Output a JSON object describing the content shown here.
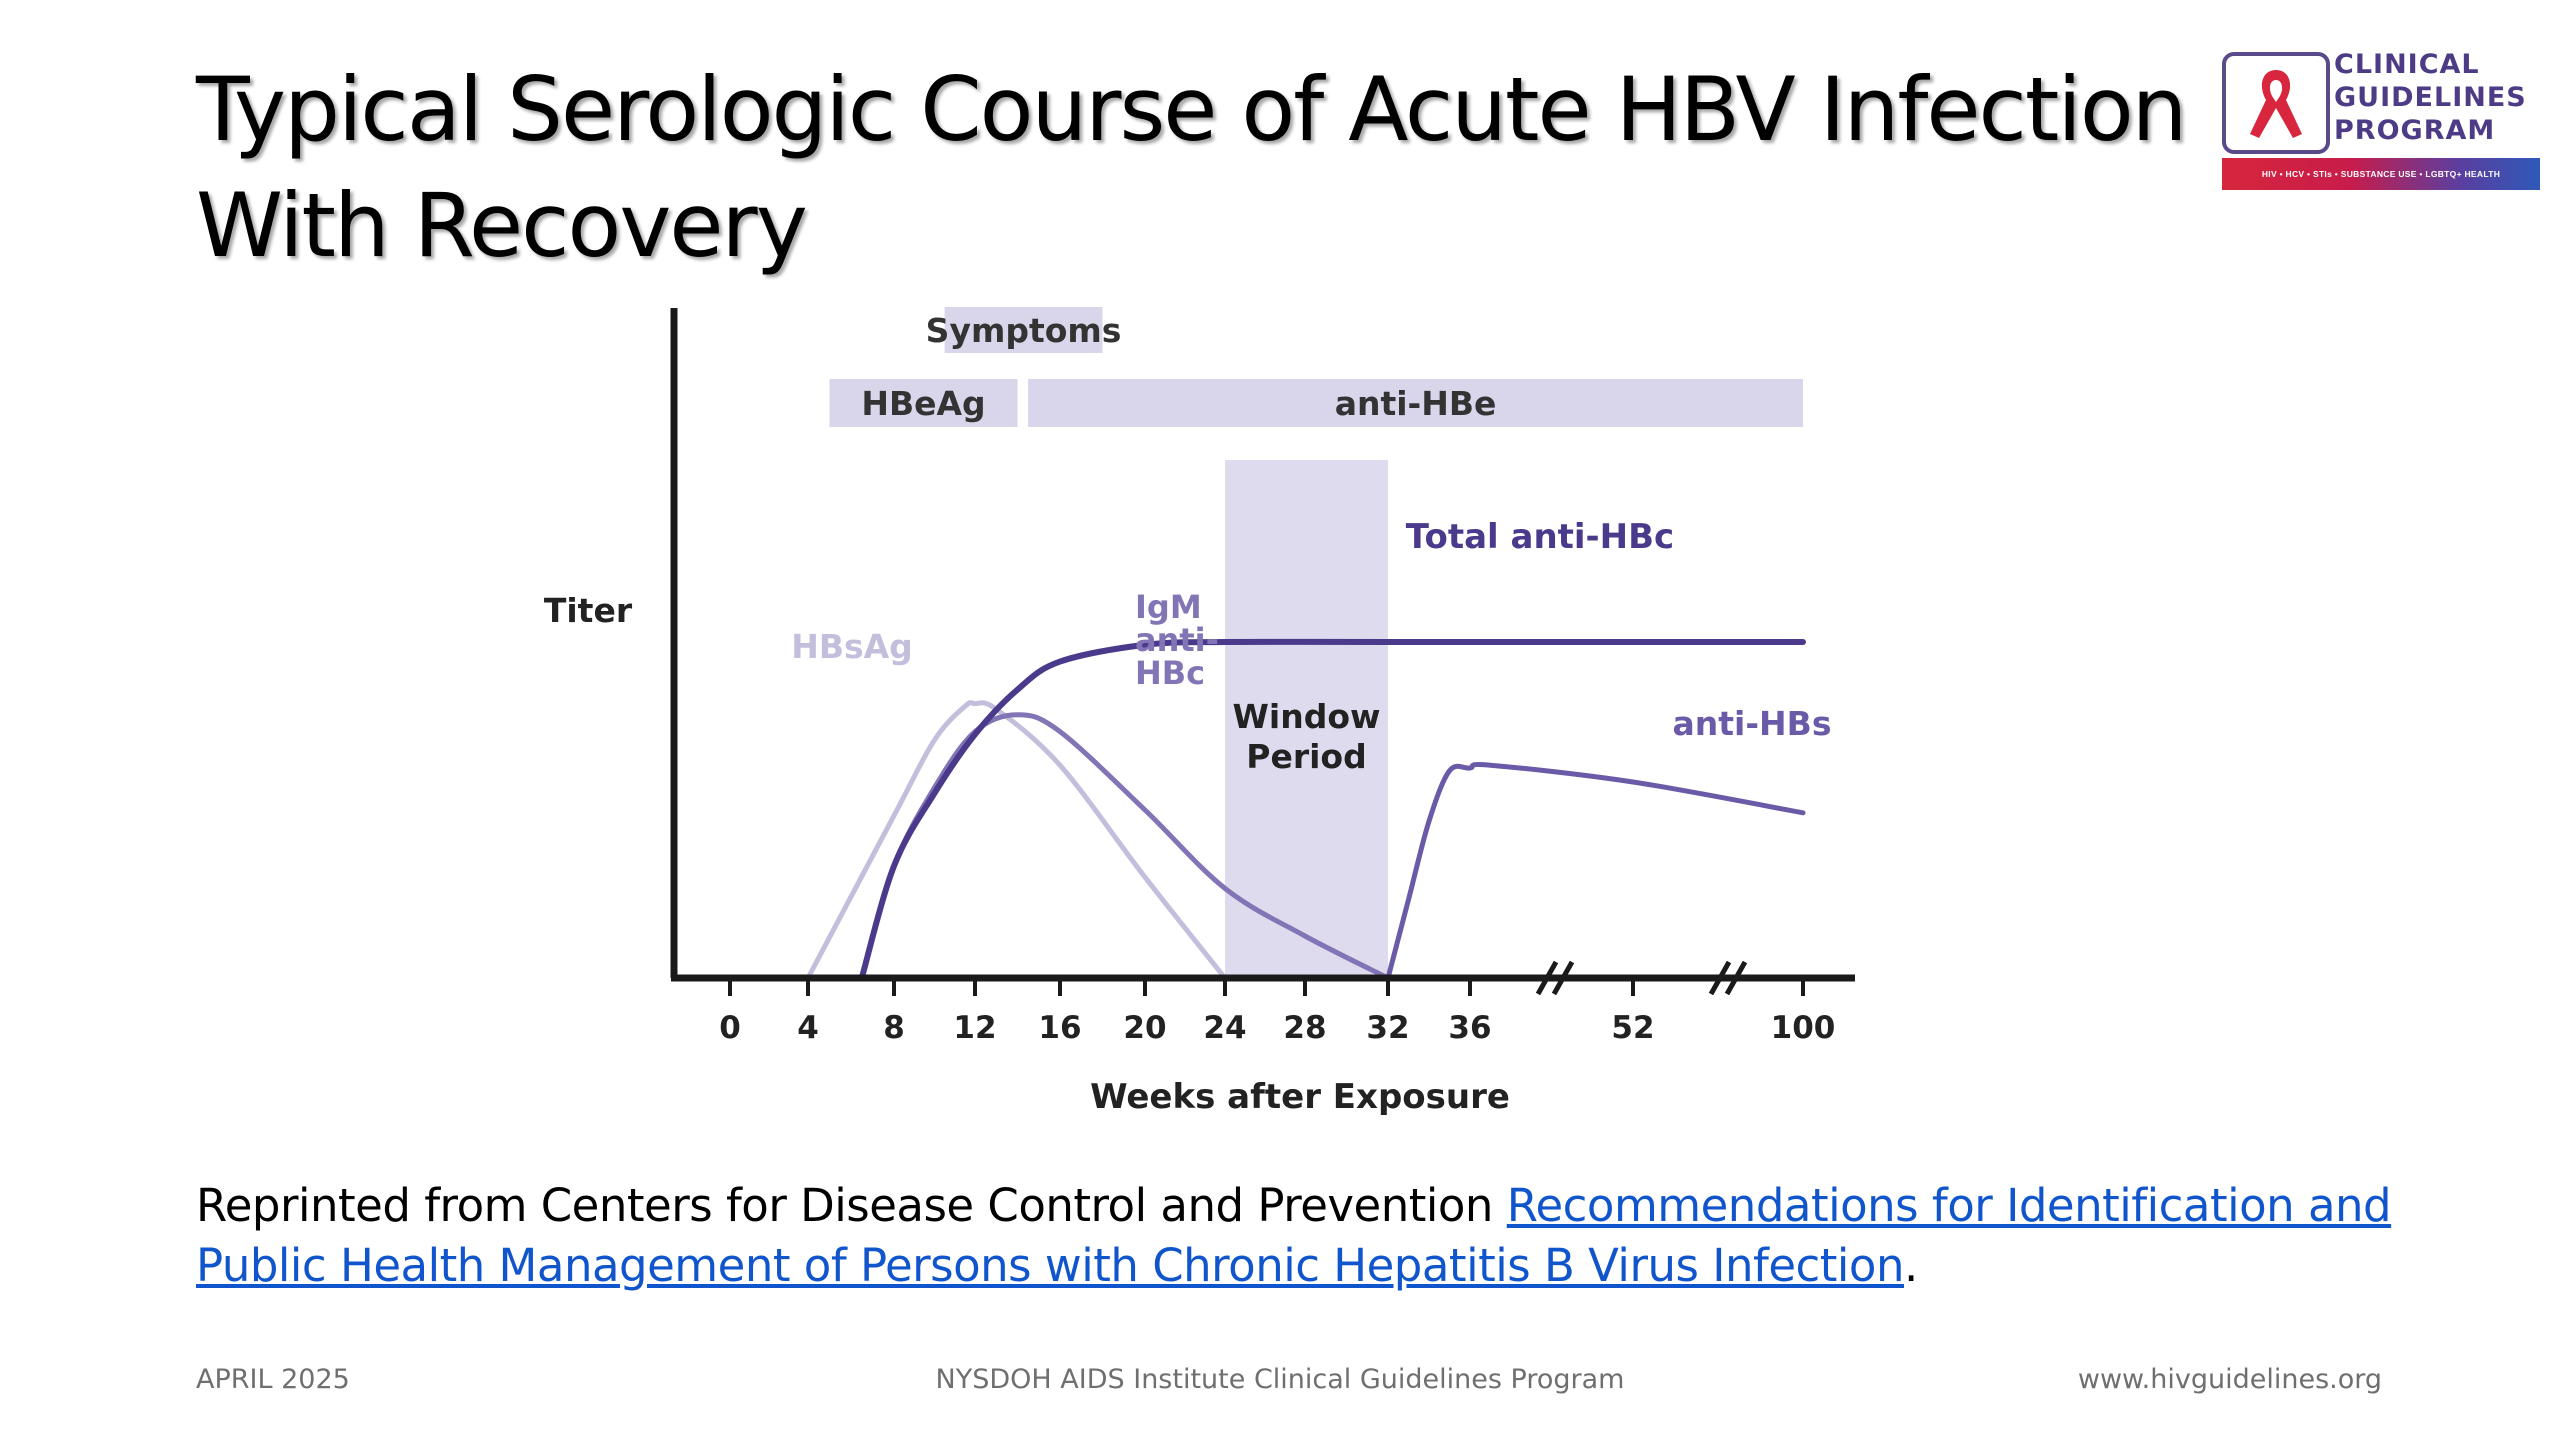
{
  "slide": {
    "title_line1": "Typical Serologic Course of Acute HBV Infection",
    "title_line2": "With Recovery",
    "caption_prefix": "Reprinted from Centers for Disease Control and Prevention ",
    "caption_link": "Recommendations for Identification and Public Health Management of Persons with Chronic Hepatitis B Virus Infection",
    "caption_suffix": ".",
    "footer_left": "APRIL 2025",
    "footer_center": "NYSDOH AIDS Institute Clinical Guidelines Program",
    "footer_right": "www.hivguidelines.org"
  },
  "logo": {
    "line1": "CLINICAL",
    "line2": "GUIDELINES",
    "line3": "PROGRAM",
    "tagline": "HIV • HCV • STIs • SUBSTANCE USE • LGBTQ+ HEALTH",
    "icon": "red-ribbon-icon",
    "colors": {
      "text": "#4d3b85",
      "ribbon": "#d7263d"
    }
  },
  "chart_data": {
    "type": "line",
    "ylabel": "Titer",
    "xlabel": "Weeks after Exposure",
    "x_ticks": [
      "0",
      "4",
      "8",
      "12",
      "16",
      "20",
      "24",
      "28",
      "32",
      "36",
      "52",
      "100"
    ],
    "axis_breaks_after": [
      "36",
      "52"
    ],
    "bands": [
      {
        "label": "Symptoms",
        "start": 10.5,
        "end": 18
      },
      {
        "label": "HBeAg",
        "start": 5,
        "end": 14
      },
      {
        "label": "anti-HBe",
        "start": 14.5,
        "end": 100
      }
    ],
    "shaded_region": {
      "label": "Window Period",
      "start": 24,
      "end": 32
    },
    "series": [
      {
        "name": "HBsAg",
        "color": "#c4bedd",
        "x": [
          4,
          8,
          10,
          11.5,
          12,
          13,
          16,
          20,
          24
        ],
        "y": [
          0,
          0.58,
          0.85,
          0.97,
          0.98,
          0.96,
          0.76,
          0.36,
          0
        ]
      },
      {
        "name": "IgM anti-HBc",
        "color": "#8274b5",
        "x": [
          6.5,
          8,
          10,
          12,
          14,
          16,
          20,
          24,
          28,
          32
        ],
        "y": [
          0,
          0.4,
          0.68,
          0.88,
          0.94,
          0.88,
          0.6,
          0.32,
          0.15,
          0
        ]
      },
      {
        "name": "Total anti-HBc",
        "color": "#4b3a8c",
        "x": [
          6.5,
          8,
          10,
          12,
          14,
          16,
          20,
          24,
          32,
          36,
          52,
          100
        ],
        "y": [
          0,
          0.4,
          0.66,
          0.87,
          1.03,
          1.13,
          1.19,
          1.2,
          1.2,
          1.2,
          1.2,
          1.2
        ]
      },
      {
        "name": "anti-HBs",
        "color": "#6a5aa8",
        "x": [
          32,
          33,
          34,
          35,
          36,
          38,
          52,
          100
        ],
        "y": [
          0,
          0.28,
          0.56,
          0.74,
          0.75,
          0.76,
          0.7,
          0.59
        ]
      }
    ],
    "colors": {
      "band": "#d9d5eb",
      "window": "#dedbee",
      "axis": "#1a1a1a",
      "label": "#333333"
    }
  }
}
